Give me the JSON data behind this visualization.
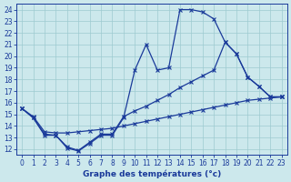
{
  "xlabel": "Graphe des températures (°c)",
  "bg_color": "#cce8ec",
  "line_color": "#1a3a9a",
  "grid_color": "#9ecad0",
  "xlim": [
    -0.5,
    23.5
  ],
  "ylim": [
    11.5,
    24.5
  ],
  "xticks": [
    0,
    1,
    2,
    3,
    4,
    5,
    6,
    7,
    8,
    9,
    10,
    11,
    12,
    13,
    14,
    15,
    16,
    17,
    18,
    19,
    20,
    21,
    22,
    23
  ],
  "yticks": [
    12,
    13,
    14,
    15,
    16,
    17,
    18,
    19,
    20,
    21,
    22,
    23,
    24
  ],
  "line1_x": [
    0,
    1,
    2,
    3,
    4,
    5,
    6,
    7,
    8,
    9,
    10,
    11,
    12,
    13,
    14,
    15,
    16,
    17,
    18,
    19,
    20,
    21,
    22,
    23
  ],
  "line1_y": [
    15.5,
    14.7,
    13.2,
    13.2,
    12.1,
    11.85,
    12.5,
    13.2,
    13.2,
    14.7,
    18.8,
    21.0,
    18.8,
    19.0,
    24.0,
    24.0,
    23.8,
    23.2,
    21.2,
    20.2,
    18.2,
    17.4,
    16.5,
    16.5
  ],
  "line2_x": [
    0,
    1,
    2,
    3,
    4,
    5,
    6,
    7,
    8,
    9,
    10,
    11,
    12,
    13,
    14,
    15,
    16,
    17,
    18,
    19,
    20,
    21,
    22,
    23
  ],
  "line2_y": [
    15.5,
    14.7,
    13.3,
    13.2,
    12.2,
    11.9,
    12.6,
    13.3,
    13.3,
    14.8,
    15.3,
    15.7,
    16.2,
    16.7,
    17.3,
    17.8,
    18.3,
    18.8,
    21.2,
    20.2,
    18.2,
    17.4,
    16.5,
    16.5
  ],
  "line3_x": [
    0,
    1,
    2,
    3,
    4,
    5,
    6,
    7,
    8,
    9,
    10,
    11,
    12,
    13,
    14,
    15,
    16,
    17,
    18,
    19,
    20,
    21,
    22,
    23
  ],
  "line3_y": [
    15.5,
    14.8,
    13.5,
    13.4,
    13.4,
    13.5,
    13.6,
    13.7,
    13.8,
    14.0,
    14.2,
    14.4,
    14.6,
    14.8,
    15.0,
    15.2,
    15.4,
    15.6,
    15.8,
    16.0,
    16.2,
    16.3,
    16.4,
    16.5
  ]
}
